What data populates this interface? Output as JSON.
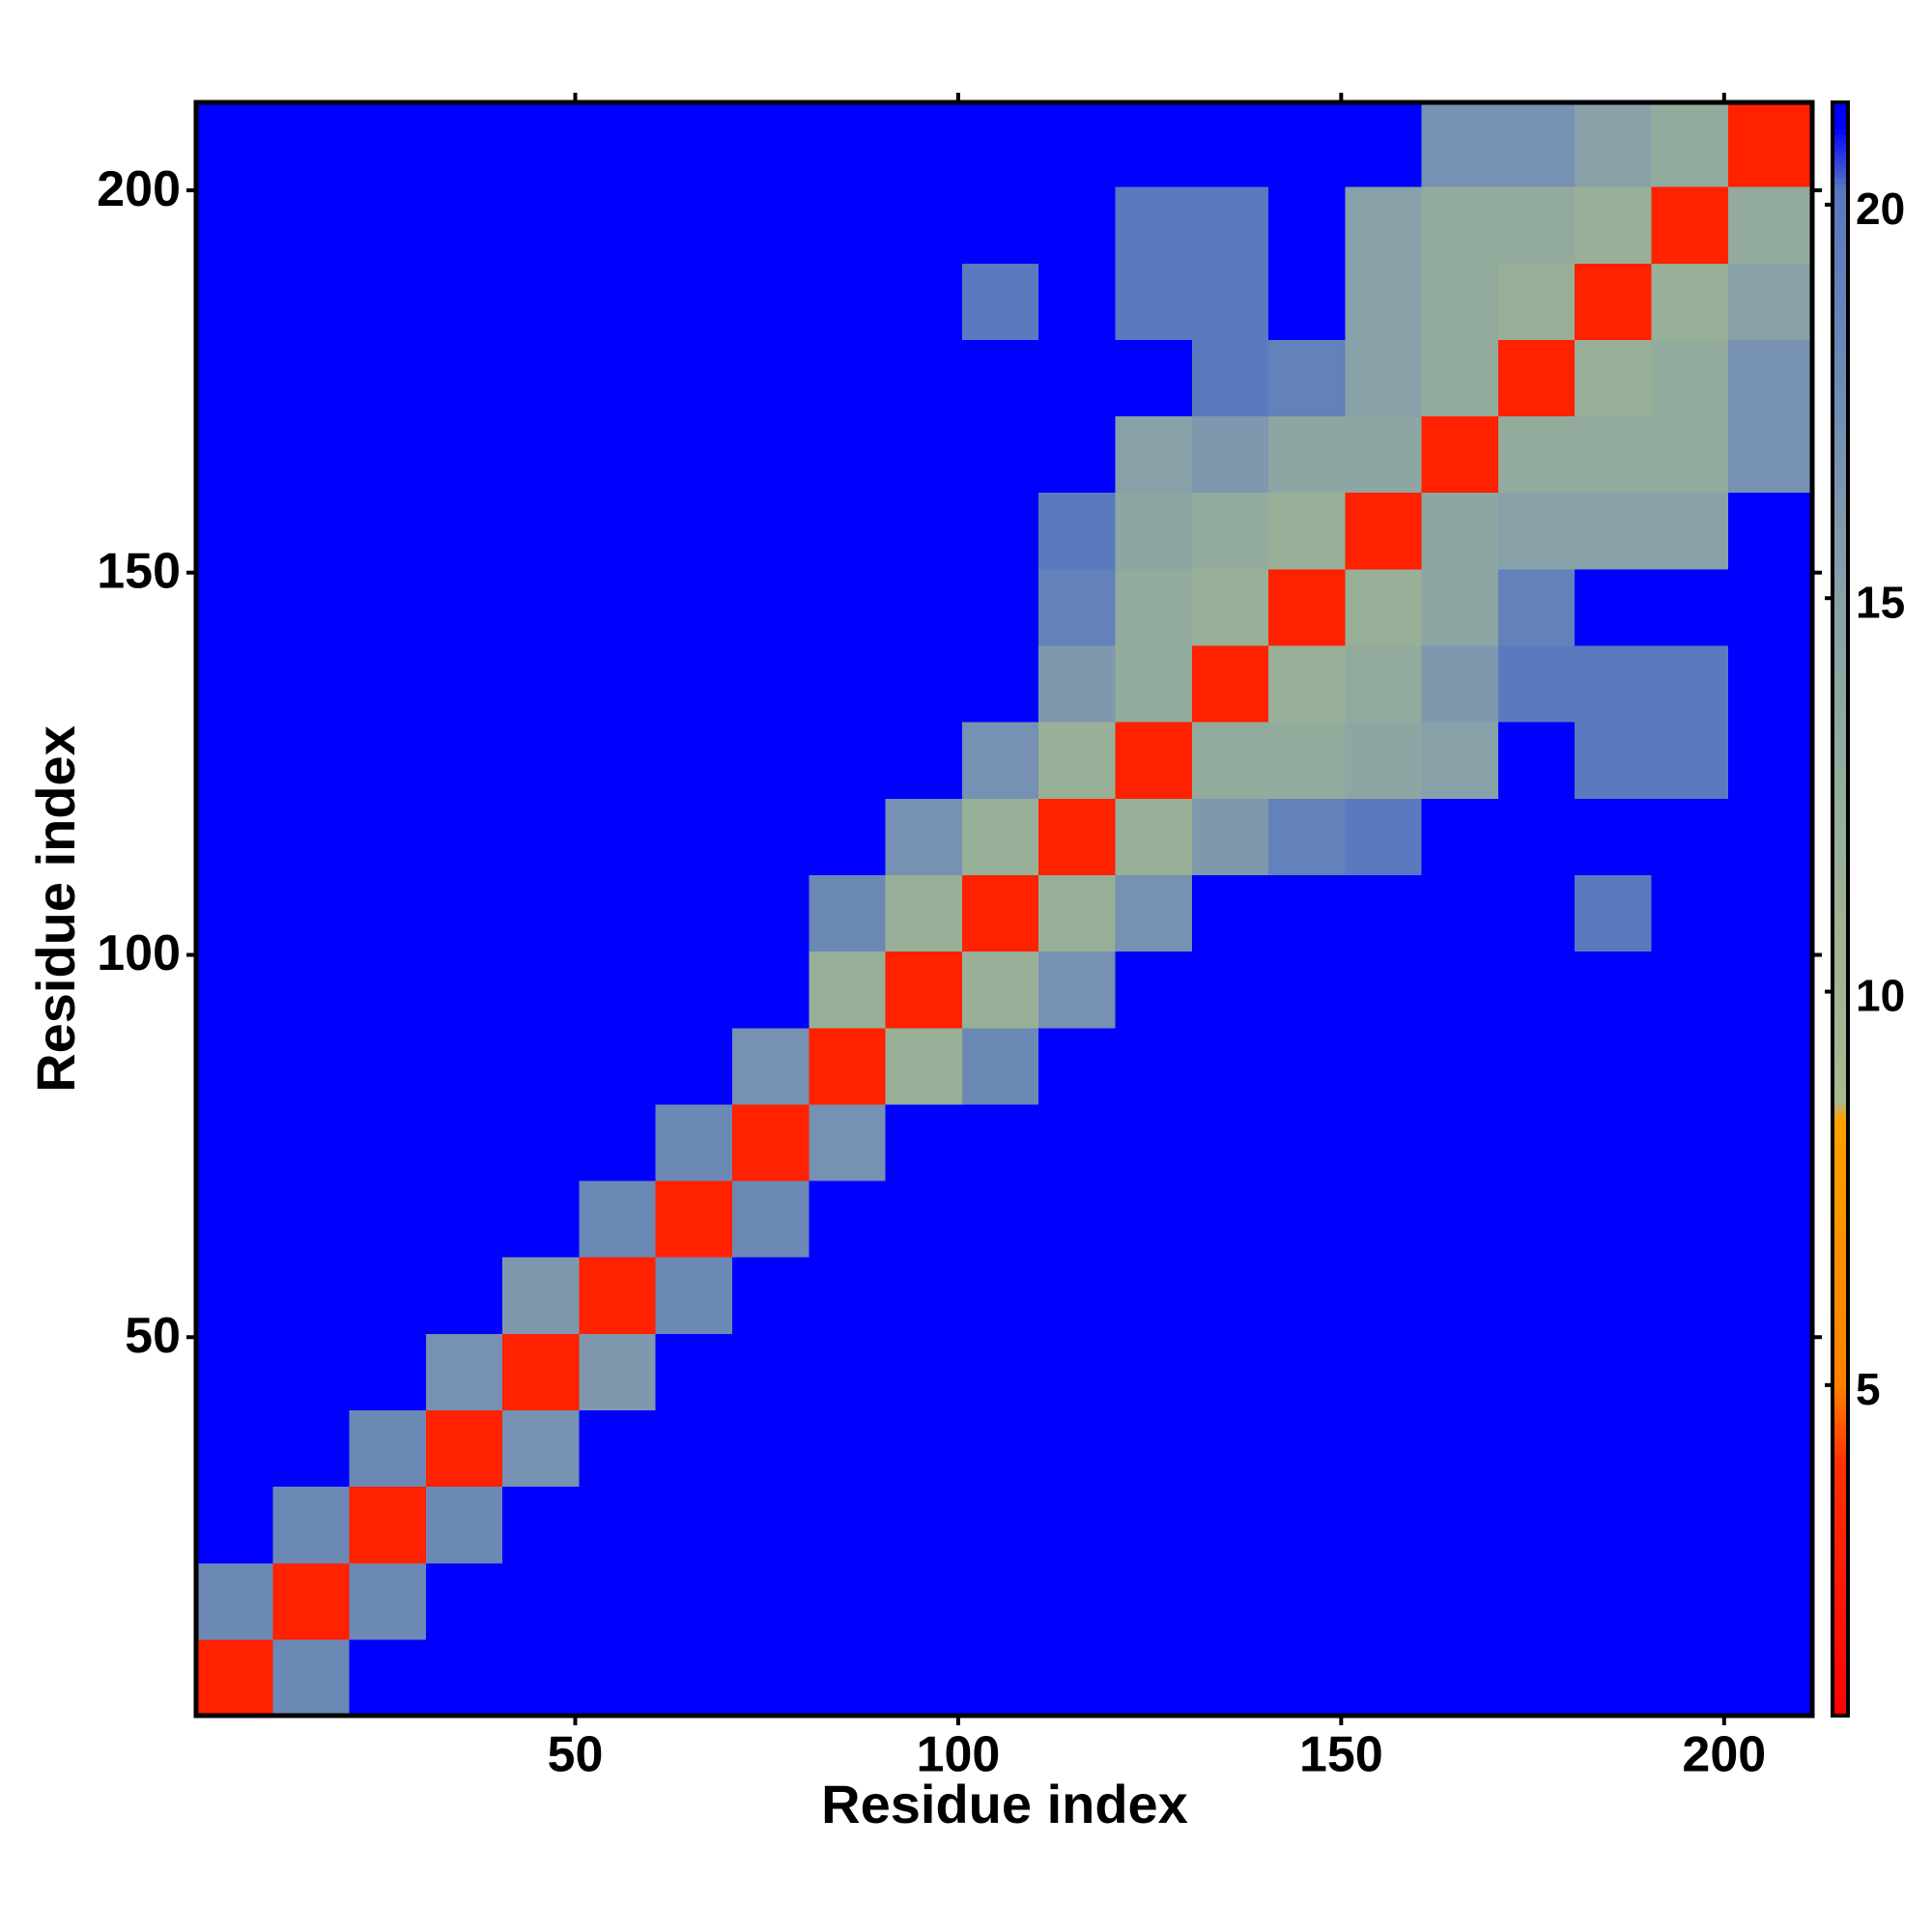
{
  "chart_data": {
    "type": "heatmap",
    "xlabel": "Residue index",
    "ylabel": "Residue index",
    "xbins": [
      0.5,
      10.5,
      20.5,
      30.5,
      40.5,
      50.5,
      60.5,
      70.5,
      80.5,
      90.5,
      100.5,
      110.5,
      120.5,
      130.5,
      140.5,
      150.5,
      160.5,
      170.5,
      180.5,
      190.5,
      200.5,
      211.5
    ],
    "ybins": [
      0.5,
      10.5,
      20.5,
      30.5,
      40.5,
      50.5,
      60.5,
      70.5,
      80.5,
      90.5,
      100.5,
      110.5,
      120.5,
      130.5,
      140.5,
      150.5,
      160.5,
      170.5,
      180.5,
      190.5,
      200.5,
      211.5
    ],
    "z": [
      [
        3,
        18,
        21,
        21,
        21,
        21,
        21,
        21,
        21,
        21,
        21,
        21,
        21,
        21,
        21,
        21,
        21,
        21,
        21,
        21,
        21
      ],
      [
        18,
        3,
        18,
        21,
        21,
        21,
        21,
        21,
        21,
        21,
        21,
        21,
        21,
        21,
        21,
        21,
        21,
        21,
        21,
        21,
        21
      ],
      [
        21,
        18,
        3,
        18,
        21,
        21,
        21,
        21,
        21,
        21,
        21,
        21,
        21,
        21,
        21,
        21,
        21,
        21,
        21,
        21,
        21
      ],
      [
        21,
        21,
        18,
        3,
        17,
        21,
        21,
        21,
        21,
        21,
        21,
        21,
        21,
        21,
        21,
        21,
        21,
        21,
        21,
        21,
        21
      ],
      [
        21,
        21,
        21,
        17,
        3,
        16,
        21,
        21,
        21,
        21,
        21,
        21,
        21,
        21,
        21,
        21,
        21,
        21,
        21,
        21,
        21
      ],
      [
        21,
        21,
        21,
        21,
        16,
        3,
        18,
        21,
        21,
        21,
        21,
        21,
        21,
        21,
        21,
        21,
        21,
        21,
        21,
        21,
        21
      ],
      [
        21,
        21,
        21,
        21,
        21,
        18,
        3,
        18,
        21,
        21,
        21,
        21,
        21,
        21,
        21,
        21,
        21,
        21,
        21,
        21,
        21
      ],
      [
        21,
        21,
        21,
        21,
        21,
        21,
        18,
        3,
        17,
        21,
        21,
        21,
        21,
        21,
        21,
        21,
        21,
        21,
        21,
        21,
        21
      ],
      [
        21,
        21,
        21,
        21,
        21,
        21,
        21,
        17,
        3,
        12,
        18,
        21,
        21,
        21,
        21,
        21,
        21,
        21,
        21,
        21,
        21
      ],
      [
        21,
        21,
        21,
        21,
        21,
        21,
        21,
        21,
        12,
        3,
        12,
        17,
        21,
        21,
        21,
        21,
        21,
        21,
        21,
        21,
        21
      ],
      [
        21,
        21,
        21,
        21,
        21,
        21,
        21,
        21,
        18,
        12,
        3,
        12,
        17,
        21,
        21,
        21,
        21,
        21,
        20,
        21,
        21
      ],
      [
        21,
        21,
        21,
        21,
        21,
        21,
        21,
        21,
        21,
        17,
        12,
        3,
        12,
        16,
        19,
        20,
        21,
        21,
        21,
        21,
        21
      ],
      [
        21,
        21,
        21,
        21,
        21,
        21,
        21,
        21,
        21,
        21,
        17,
        12,
        3,
        13,
        13,
        14,
        15,
        21,
        20,
        20,
        21
      ],
      [
        21,
        21,
        21,
        21,
        21,
        21,
        21,
        21,
        21,
        21,
        21,
        16,
        13,
        3,
        12,
        13,
        16,
        20,
        20,
        20,
        21
      ],
      [
        21,
        21,
        21,
        21,
        21,
        21,
        21,
        21,
        21,
        21,
        21,
        19,
        13,
        12,
        3,
        12,
        14,
        19,
        21,
        21,
        21
      ],
      [
        21,
        21,
        21,
        21,
        21,
        21,
        21,
        21,
        21,
        21,
        21,
        20,
        14,
        13,
        12,
        3,
        14,
        15,
        15,
        15,
        21
      ],
      [
        21,
        21,
        21,
        21,
        21,
        21,
        21,
        21,
        21,
        21,
        21,
        21,
        15,
        16,
        14,
        14,
        3,
        13,
        13,
        13,
        17
      ],
      [
        21,
        21,
        21,
        21,
        21,
        21,
        21,
        21,
        21,
        21,
        21,
        21,
        21,
        20,
        19,
        15,
        13,
        3,
        12,
        13,
        17
      ],
      [
        21,
        21,
        21,
        21,
        21,
        21,
        21,
        21,
        21,
        21,
        20,
        21,
        20,
        20,
        21,
        15,
        13,
        12,
        3,
        12,
        15
      ],
      [
        21,
        21,
        21,
        21,
        21,
        21,
        21,
        21,
        21,
        21,
        21,
        21,
        20,
        20,
        21,
        15,
        13,
        13,
        12,
        3,
        13
      ],
      [
        21,
        21,
        21,
        21,
        21,
        21,
        21,
        21,
        21,
        21,
        21,
        21,
        21,
        21,
        21,
        21,
        17,
        17,
        15,
        13,
        3
      ]
    ],
    "xlim": [
      0.5,
      211.5
    ],
    "ylim": [
      0.5,
      211.5
    ],
    "xticks": [
      50,
      100,
      150,
      200
    ],
    "yticks": [
      50,
      100,
      150,
      200
    ],
    "zlim": [
      0.8,
      21.3
    ],
    "zticks": [
      5,
      10,
      15,
      20
    ],
    "colorscale": [
      [
        0.8,
        "#ff0000"
      ],
      [
        4,
        "#ff3000"
      ],
      [
        5,
        "#ff8000"
      ],
      [
        8.4,
        "#ffa000"
      ],
      [
        8.6,
        "#a8b890"
      ],
      [
        12,
        "#98b098"
      ],
      [
        15,
        "#88a0a8"
      ],
      [
        20.2,
        "#5878c0"
      ],
      [
        21,
        "#0000ff"
      ]
    ]
  }
}
